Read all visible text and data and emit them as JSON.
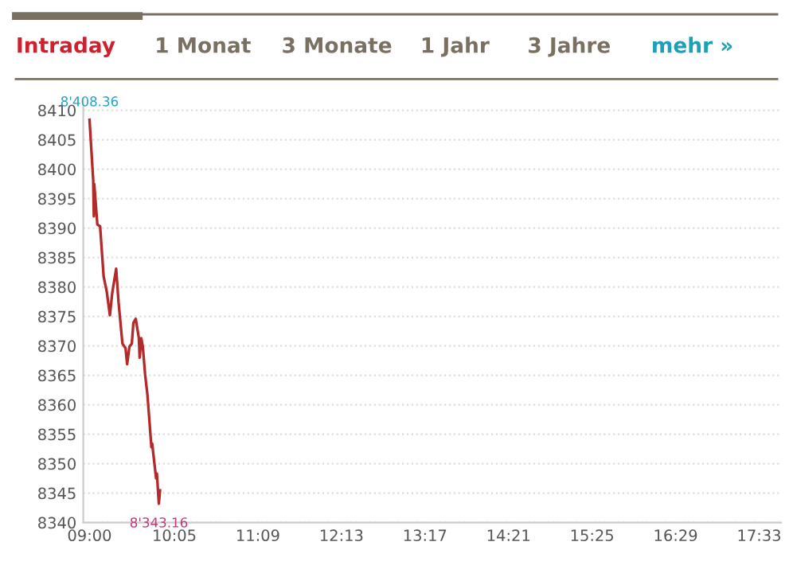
{
  "chart_data": {
    "type": "line",
    "annotations": [
      "Intraday",
      "1 Monat",
      "3 Monate",
      "1 Jahr",
      "3 Jahre",
      "mehr »",
      {
        "text": "8'408.36",
        "x": 9.0,
        "y": 8408.36
      },
      {
        "text": "8'343.16",
        "x": 9.885,
        "y": 8343.16
      }
    ],
    "series": [
      {
        "color": "#b22a2a",
        "x": [
          9.0,
          9.047,
          9.055,
          9.06,
          9.1,
          9.135,
          9.18,
          9.22,
          9.26,
          9.29,
          9.34,
          9.37,
          9.42,
          9.46,
          9.48,
          9.51,
          9.54,
          9.56,
          9.59,
          9.63,
          9.64,
          9.66,
          9.68,
          9.71,
          9.74,
          9.79,
          9.8,
          9.85,
          9.86,
          9.885,
          9.9
        ],
        "values": [
          8408.4,
          8398.1,
          8392,
          8397.5,
          8390.6,
          8390.3,
          8381.8,
          8379.2,
          8375.2,
          8379,
          8383.1,
          8377.5,
          8370.4,
          8369.6,
          8366.9,
          8369.9,
          8370.4,
          8373.9,
          8374.6,
          8371.3,
          8368,
          8371.3,
          8369.9,
          8365.1,
          8361.6,
          8352.8,
          8353.4,
          8347.5,
          8348.3,
          8343.2,
          8345.5
        ]
      }
    ],
    "xlim": [
      8.92,
      17.83
    ],
    "xticks": [
      {
        "value": 9.0,
        "label": "09:00"
      },
      {
        "value": 10.0833,
        "label": "10:05"
      },
      {
        "value": 11.15,
        "label": "11:09"
      },
      {
        "value": 12.2167,
        "label": "12:13"
      },
      {
        "value": 13.2833,
        "label": "13:17"
      },
      {
        "value": 14.35,
        "label": "14:21"
      },
      {
        "value": 15.4167,
        "label": "15:25"
      },
      {
        "value": 16.4833,
        "label": "16:29"
      },
      {
        "value": 17.55,
        "label": "17:33"
      }
    ],
    "ylim": [
      8340,
      8412
    ],
    "yticks": [
      8340,
      8345,
      8350,
      8355,
      8360,
      8365,
      8370,
      8375,
      8380,
      8385,
      8390,
      8395,
      8400,
      8405,
      8410
    ],
    "grid": "y",
    "marker": "none",
    "line_style": "solid"
  }
}
